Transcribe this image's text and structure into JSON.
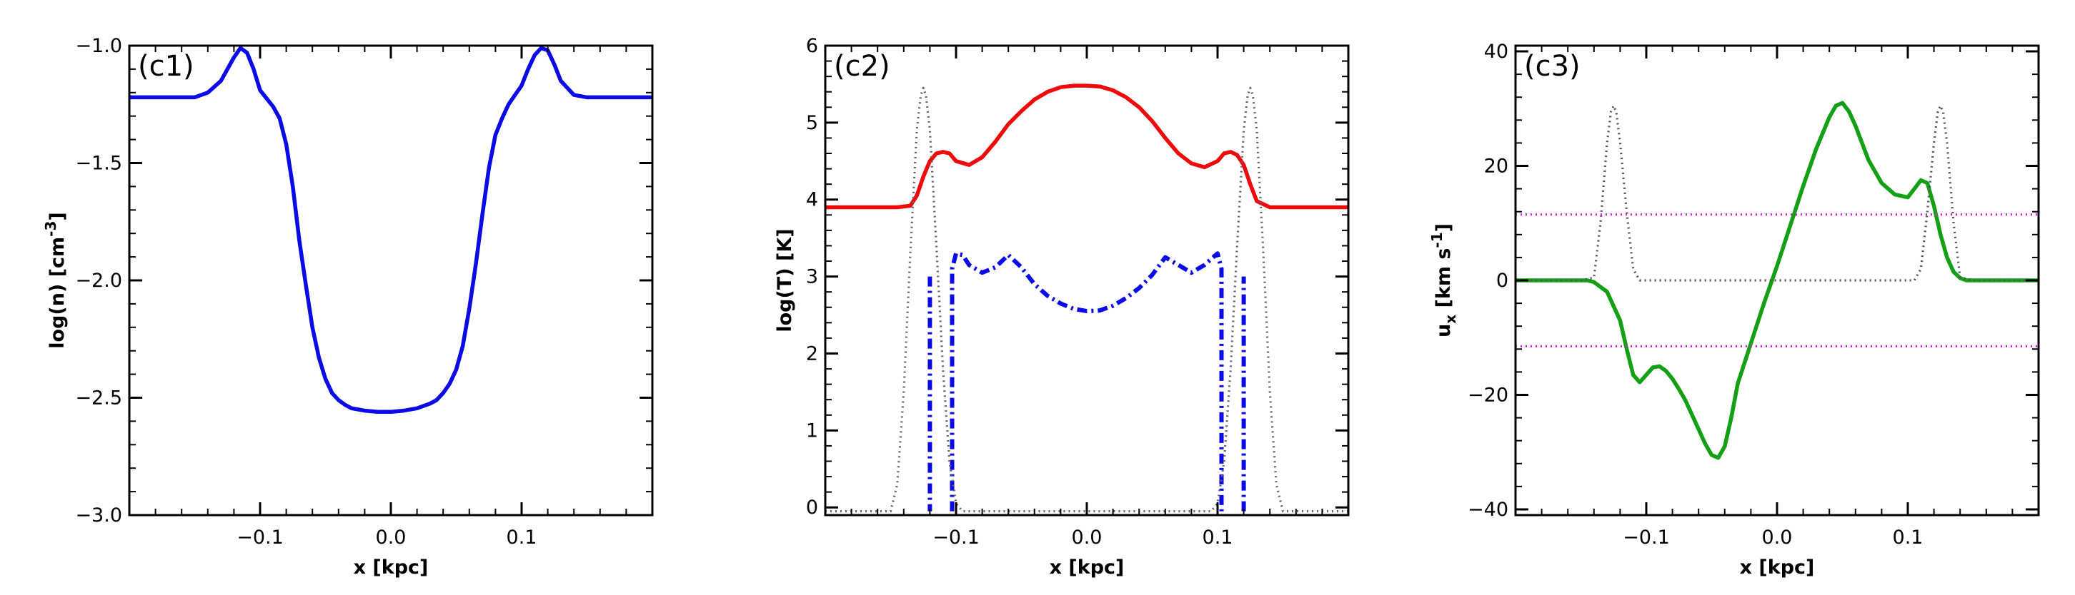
{
  "chart_data": [
    {
      "type": "line",
      "panel_label": "(c1)",
      "xlabel": "x [kpc]",
      "ylabel": "log(n) [cm",
      "ylabel_sup": "-3",
      "ylabel_end": "]",
      "xlim": [
        -0.2,
        0.2
      ],
      "ylim": [
        -3.0,
        -1.0
      ],
      "xticks": [
        -0.1,
        0.0,
        0.1
      ],
      "xtick_labels": [
        "−0.1",
        "0.0",
        "0.1"
      ],
      "yticks": [
        -3.0,
        -2.5,
        -2.0,
        -1.5,
        -1.0
      ],
      "ytick_labels": [
        "−3.0",
        "−2.5",
        "−2.0",
        "−1.5",
        "−1.0"
      ],
      "series": [
        {
          "name": "density",
          "color": "#0a0ae6",
          "style": "solid",
          "x": [
            -0.2,
            -0.15,
            -0.14,
            -0.13,
            -0.12,
            -0.115,
            -0.11,
            -0.105,
            -0.1,
            -0.09,
            -0.085,
            -0.08,
            -0.075,
            -0.07,
            -0.065,
            -0.06,
            -0.055,
            -0.05,
            -0.045,
            -0.04,
            -0.035,
            -0.03,
            -0.02,
            -0.01,
            0.0,
            0.01,
            0.02,
            0.03,
            0.035,
            0.04,
            0.045,
            0.05,
            0.055,
            0.06,
            0.065,
            0.07,
            0.075,
            0.08,
            0.085,
            0.09,
            0.1,
            0.105,
            0.11,
            0.115,
            0.12,
            0.125,
            0.13,
            0.14,
            0.15,
            0.2
          ],
          "y": [
            -1.22,
            -1.22,
            -1.2,
            -1.15,
            -1.05,
            -1.01,
            -1.03,
            -1.1,
            -1.19,
            -1.26,
            -1.31,
            -1.42,
            -1.6,
            -1.83,
            -2.02,
            -2.2,
            -2.33,
            -2.42,
            -2.48,
            -2.51,
            -2.53,
            -2.545,
            -2.555,
            -2.56,
            -2.56,
            -2.555,
            -2.545,
            -2.525,
            -2.51,
            -2.48,
            -2.44,
            -2.38,
            -2.28,
            -2.12,
            -1.93,
            -1.72,
            -1.52,
            -1.38,
            -1.31,
            -1.25,
            -1.17,
            -1.1,
            -1.04,
            -1.01,
            -1.02,
            -1.08,
            -1.15,
            -1.21,
            -1.22,
            -1.22
          ]
        }
      ]
    },
    {
      "type": "line",
      "panel_label": "(c2)",
      "xlabel": "x [kpc]",
      "ylabel": "log(T) [K]",
      "xlim": [
        -0.2,
        0.2
      ],
      "ylim": [
        -0.1,
        6.0
      ],
      "xticks": [
        -0.1,
        0.0,
        0.1
      ],
      "xtick_labels": [
        "−0.1",
        "0.0",
        "0.1"
      ],
      "yticks": [
        0,
        1,
        2,
        3,
        4,
        5,
        6
      ],
      "ytick_labels": [
        "0",
        "1",
        "2",
        "3",
        "4",
        "5",
        "6"
      ],
      "series": [
        {
          "name": "temperature",
          "color": "#ee0a0a",
          "style": "solid",
          "x": [
            -0.2,
            -0.145,
            -0.135,
            -0.13,
            -0.125,
            -0.12,
            -0.115,
            -0.11,
            -0.105,
            -0.1,
            -0.09,
            -0.08,
            -0.07,
            -0.06,
            -0.05,
            -0.04,
            -0.03,
            -0.02,
            -0.01,
            0.0,
            0.01,
            0.02,
            0.03,
            0.04,
            0.05,
            0.06,
            0.07,
            0.08,
            0.09,
            0.1,
            0.105,
            0.11,
            0.115,
            0.12,
            0.125,
            0.13,
            0.14,
            0.15,
            0.2
          ],
          "y": [
            3.9,
            3.9,
            3.92,
            4.05,
            4.3,
            4.5,
            4.6,
            4.62,
            4.6,
            4.5,
            4.45,
            4.55,
            4.75,
            4.98,
            5.15,
            5.3,
            5.4,
            5.46,
            5.48,
            5.48,
            5.47,
            5.42,
            5.33,
            5.2,
            5.02,
            4.8,
            4.6,
            4.47,
            4.42,
            4.5,
            4.6,
            4.62,
            4.58,
            4.45,
            4.2,
            3.98,
            3.9,
            3.9,
            3.9
          ]
        },
        {
          "name": "profile",
          "color": "#0a0ae6",
          "style": "dashdot",
          "x": [
            -0.12,
            -0.12,
            -0.12,
            -0.103,
            -0.103,
            -0.1,
            -0.095,
            -0.09,
            -0.08,
            -0.07,
            -0.06,
            -0.05,
            -0.04,
            -0.03,
            -0.02,
            -0.01,
            0.0,
            0.01,
            0.02,
            0.03,
            0.04,
            0.05,
            0.06,
            0.07,
            0.08,
            0.09,
            0.1,
            0.103,
            0.103,
            0.103,
            0.12,
            0.12
          ],
          "y": [
            3.0,
            -0.05,
            null,
            -0.05,
            3.1,
            3.3,
            3.28,
            3.15,
            3.05,
            3.12,
            3.28,
            3.12,
            2.9,
            2.75,
            2.65,
            2.58,
            2.55,
            2.56,
            2.62,
            2.72,
            2.85,
            3.02,
            3.25,
            3.15,
            3.05,
            3.15,
            3.3,
            3.1,
            -0.05,
            null,
            -0.05,
            3.0
          ]
        },
        {
          "name": "reference",
          "color": "#666666",
          "style": "dotted",
          "x": [
            -0.2,
            -0.16,
            -0.15,
            -0.145,
            -0.14,
            -0.135,
            -0.13,
            -0.127,
            -0.125,
            -0.123,
            -0.12,
            -0.115,
            -0.11,
            -0.105,
            -0.1,
            -0.095,
            -0.09,
            -0.085,
            0.085,
            0.09,
            0.095,
            0.1,
            0.105,
            0.11,
            0.115,
            0.12,
            0.123,
            0.125,
            0.127,
            0.13,
            0.135,
            0.14,
            0.145,
            0.15,
            0.16,
            0.2
          ],
          "y": [
            -0.05,
            -0.05,
            -0.05,
            0.3,
            1.5,
            3.3,
            4.9,
            5.35,
            5.45,
            5.35,
            4.9,
            3.4,
            1.8,
            0.6,
            0.05,
            -0.05,
            -0.05,
            -0.05,
            -0.05,
            -0.05,
            -0.05,
            0.05,
            0.6,
            1.8,
            3.4,
            4.9,
            5.35,
            5.45,
            5.35,
            4.9,
            3.3,
            1.5,
            0.3,
            -0.05,
            -0.05,
            -0.05
          ]
        }
      ]
    },
    {
      "type": "line",
      "panel_label": "(c3)",
      "xlabel": "x [kpc]",
      "ylabel": "u",
      "ylabel_sub": "x",
      "ylabel_mid": " [km s",
      "ylabel_sup": "-1",
      "ylabel_end": "]",
      "xlim": [
        -0.2,
        0.2
      ],
      "ylim": [
        -41,
        41
      ],
      "xticks": [
        -0.1,
        0.0,
        0.1
      ],
      "xtick_labels": [
        "−0.1",
        "0.0",
        "0.1"
      ],
      "yticks": [
        -40,
        -20,
        0,
        20,
        40
      ],
      "ytick_labels": [
        "−40",
        "−20",
        "0",
        "20",
        "40"
      ],
      "series": [
        {
          "name": "velocity",
          "color": "#14a014",
          "style": "solid",
          "x": [
            -0.2,
            -0.145,
            -0.14,
            -0.13,
            -0.12,
            -0.115,
            -0.11,
            -0.105,
            -0.1,
            -0.095,
            -0.09,
            -0.085,
            -0.08,
            -0.075,
            -0.07,
            -0.065,
            -0.06,
            -0.055,
            -0.05,
            -0.045,
            -0.04,
            -0.035,
            -0.03,
            -0.02,
            -0.01,
            0.0,
            0.01,
            0.02,
            0.03,
            0.04,
            0.045,
            0.05,
            0.055,
            0.06,
            0.065,
            0.07,
            0.08,
            0.09,
            0.1,
            0.105,
            0.11,
            0.115,
            0.12,
            0.125,
            0.13,
            0.135,
            0.14,
            0.145,
            0.15,
            0.2
          ],
          "y": [
            0.0,
            0.0,
            -0.3,
            -2.0,
            -7.0,
            -12.0,
            -16.5,
            -17.8,
            -16.5,
            -15.2,
            -15.0,
            -15.8,
            -17.2,
            -19.0,
            -21.0,
            -23.5,
            -26.0,
            -28.5,
            -30.5,
            -31.0,
            -29.0,
            -24.0,
            -18.0,
            -11.0,
            -4.0,
            2.5,
            9.5,
            16.5,
            23.0,
            28.5,
            30.5,
            31.0,
            29.5,
            27.0,
            24.0,
            21.0,
            17.0,
            15.0,
            14.5,
            16.0,
            17.5,
            17.0,
            13.0,
            8.0,
            4.0,
            1.5,
            0.4,
            0.0,
            0.0,
            0.0
          ]
        },
        {
          "name": "reference",
          "color": "#555555",
          "style": "dotted",
          "x": [
            -0.2,
            -0.15,
            -0.14,
            -0.135,
            -0.13,
            -0.127,
            -0.125,
            -0.123,
            -0.12,
            -0.115,
            -0.11,
            -0.105,
            -0.1,
            0.1,
            0.105,
            0.11,
            0.115,
            0.12,
            0.123,
            0.125,
            0.127,
            0.13,
            0.135,
            0.14,
            0.15,
            0.2
          ],
          "y": [
            0.0,
            0.0,
            0.5,
            10.0,
            24.0,
            29.5,
            30.5,
            29.5,
            24.0,
            12.0,
            2.0,
            0.0,
            0.0,
            0.0,
            0.0,
            2.0,
            12.0,
            24.0,
            29.5,
            30.5,
            29.5,
            24.0,
            10.0,
            0.5,
            0.0,
            0.0
          ]
        },
        {
          "name": "upper-limit",
          "color": "#dd22dd",
          "style": "dotted",
          "x": [
            -0.2,
            0.2
          ],
          "y": [
            11.5,
            11.5
          ]
        },
        {
          "name": "lower-limit",
          "color": "#dd22dd",
          "style": "dotted",
          "x": [
            -0.2,
            0.2
          ],
          "y": [
            -11.5,
            -11.5
          ]
        }
      ]
    }
  ]
}
